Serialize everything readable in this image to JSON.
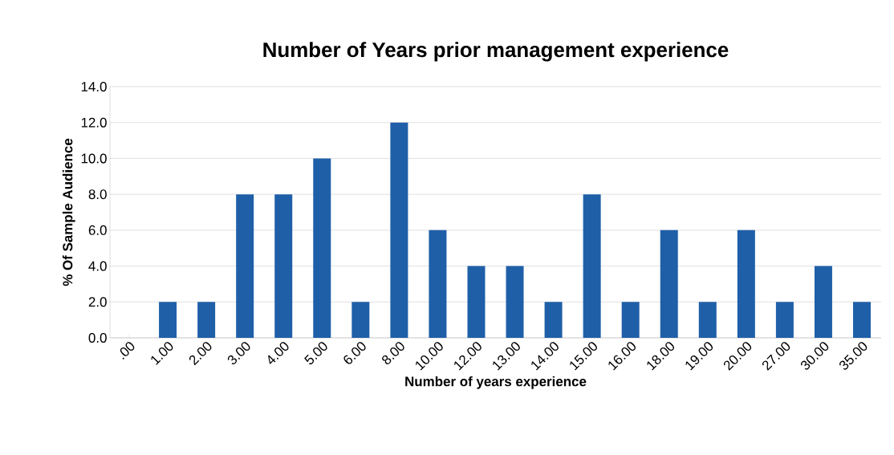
{
  "chart_data": {
    "type": "bar",
    "title": "Number of Years prior management experience",
    "xlabel": "Number of years experience",
    "ylabel": "% Of Sample Audience",
    "categories": [
      ".00",
      "1.00",
      "2.00",
      "3.00",
      "4.00",
      "5.00",
      "6.00",
      "8.00",
      "10.00",
      "12.00",
      "13.00",
      "14.00",
      "15.00",
      "16.00",
      "18.00",
      "19.00",
      "20.00",
      "27.00",
      "30.00",
      "35.00"
    ],
    "values": [
      0,
      2,
      2,
      8,
      8,
      10,
      2,
      12,
      6,
      4,
      4,
      2,
      8,
      2,
      6,
      2,
      6,
      2,
      4,
      2
    ],
    "color": "#1f5fa8",
    "ylim": [
      0,
      14
    ],
    "yticks": [
      {
        "value": 0,
        "label": "0.0"
      },
      {
        "value": 2,
        "label": "2.0"
      },
      {
        "value": 4,
        "label": "4.0"
      },
      {
        "value": 6,
        "label": "6.0"
      },
      {
        "value": 8,
        "label": "8.0"
      },
      {
        "value": 10,
        "label": "10.0"
      },
      {
        "value": 12,
        "label": "12.0"
      },
      {
        "value": 14,
        "label": "14.0"
      }
    ],
    "grid": "y"
  }
}
